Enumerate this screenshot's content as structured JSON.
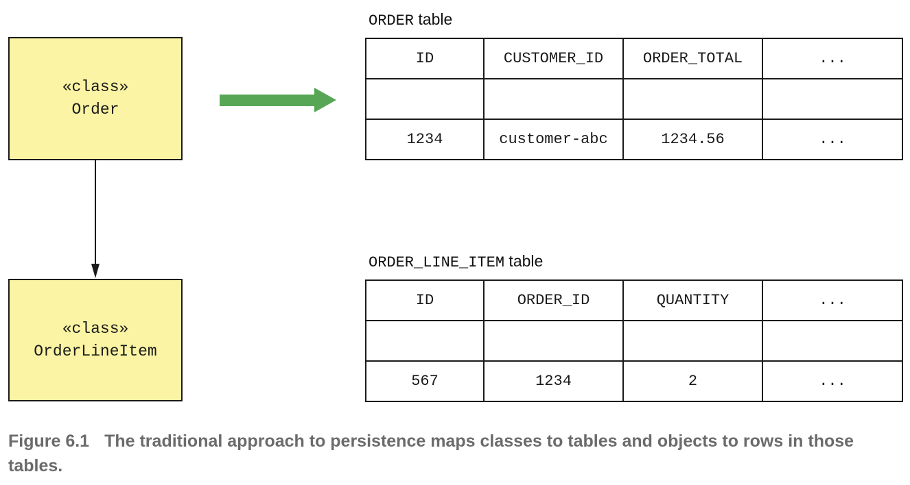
{
  "classes": {
    "order": {
      "stereotype": "«class»",
      "name": "Order"
    },
    "order_line_item": {
      "stereotype": "«class»",
      "name": "OrderLineItem"
    }
  },
  "order_table": {
    "caption_name": "ORDER",
    "caption_suffix": " table",
    "columns": [
      "ID",
      "CUSTOMER_ID",
      "ORDER_TOTAL",
      "..."
    ],
    "rows": [
      [
        "",
        "",
        "",
        ""
      ],
      [
        "1234",
        "customer-abc",
        "1234.56",
        "..."
      ]
    ]
  },
  "order_line_item_table": {
    "caption_name": "ORDER_LINE_ITEM",
    "caption_suffix": " table",
    "columns": [
      "ID",
      "ORDER_ID",
      "QUANTITY",
      "..."
    ],
    "rows": [
      [
        "",
        "",
        "",
        ""
      ],
      [
        "567",
        "1234",
        "2",
        "..."
      ]
    ]
  },
  "colors": {
    "class_fill": "#fbf4a4",
    "mapping_arrow": "#56a655",
    "caption_text": "#6b6b6b"
  },
  "figure_caption": {
    "number": "Figure 6.1",
    "text": "The traditional approach to persistence maps classes to tables and objects to rows in those tables."
  }
}
